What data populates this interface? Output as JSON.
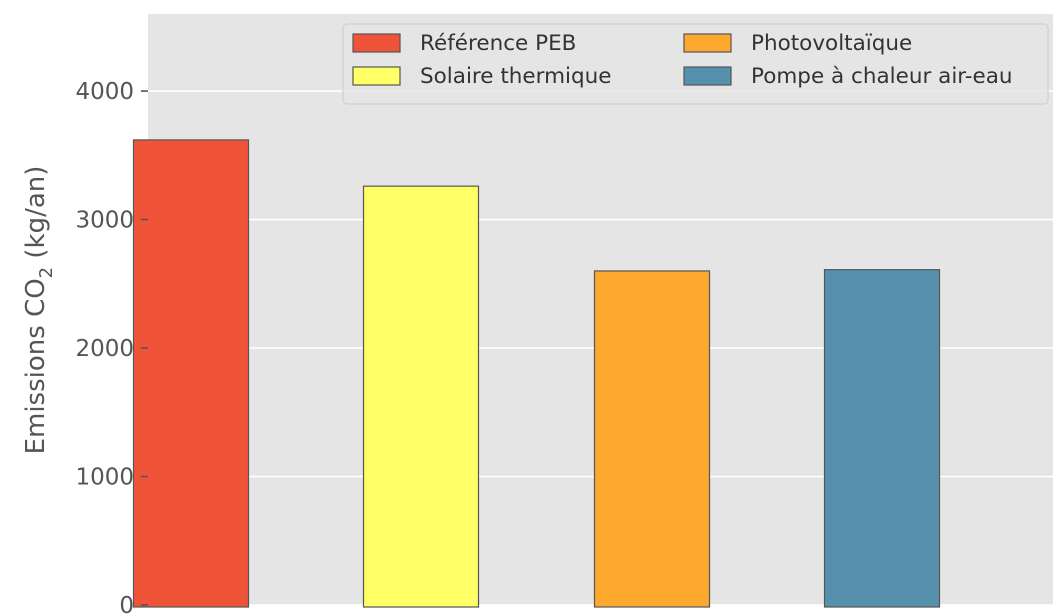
{
  "chart_data": {
    "type": "bar",
    "categories": [
      "Référence PEB",
      "Solaire thermique",
      "Photovoltaïque",
      "Pompe à chaleur air-eau"
    ],
    "values": [
      3620,
      3260,
      2600,
      2610
    ],
    "colors": [
      "#f05438",
      "#ffff66",
      "#fea82e",
      "#5591ad"
    ],
    "ylabel": {
      "prefix": "Emissions CO",
      "subscript": "2",
      "suffix": " (kg/an)"
    },
    "yticks": [
      "0",
      "1000",
      "2000",
      "3000",
      "4000"
    ],
    "ylim": [
      0,
      4600
    ],
    "grid": true,
    "legend": {
      "placement": "top-right",
      "columns": 2
    },
    "style": {
      "background": "#e5e5e5",
      "grid_color": "#ffffff",
      "bar_edge": "#555555",
      "text_color": "#555555"
    }
  }
}
